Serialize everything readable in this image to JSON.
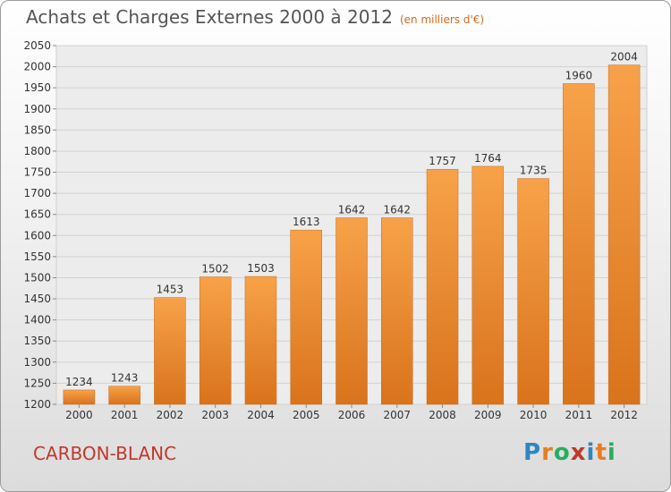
{
  "title": "Achats et Charges Externes 2000 à 2012",
  "subtitle": "(en milliers d'€)",
  "commune": "CARBON-BLANC",
  "logo": {
    "letters": [
      "P",
      "r",
      "o",
      "x",
      "i",
      "t",
      "i"
    ],
    "colors": [
      "#2e86c1",
      "#e67e22",
      "#27ae60",
      "#c0392b",
      "#2e86c1",
      "#e67e22",
      "#27ae60"
    ]
  },
  "colors": {
    "bar_top": "#f7a24a",
    "bar_bottom": "#d9731c",
    "title_sub": "#d2691e",
    "commune": "#c0392b"
  },
  "chart_data": {
    "type": "bar",
    "categories": [
      "2000",
      "2001",
      "2002",
      "2003",
      "2004",
      "2005",
      "2006",
      "2007",
      "2008",
      "2009",
      "2010",
      "2011",
      "2012"
    ],
    "values": [
      1234,
      1243,
      1453,
      1502,
      1503,
      1613,
      1642,
      1642,
      1757,
      1764,
      1735,
      1960,
      2004
    ],
    "ylim": [
      1200,
      2050
    ],
    "yticks": [
      1200,
      1250,
      1300,
      1350,
      1400,
      1450,
      1500,
      1550,
      1600,
      1650,
      1700,
      1750,
      1800,
      1850,
      1900,
      1950,
      2000,
      2050
    ],
    "grid": true,
    "title": "Achats et Charges Externes 2000 à 2012",
    "xlabel": "",
    "ylabel": ""
  }
}
